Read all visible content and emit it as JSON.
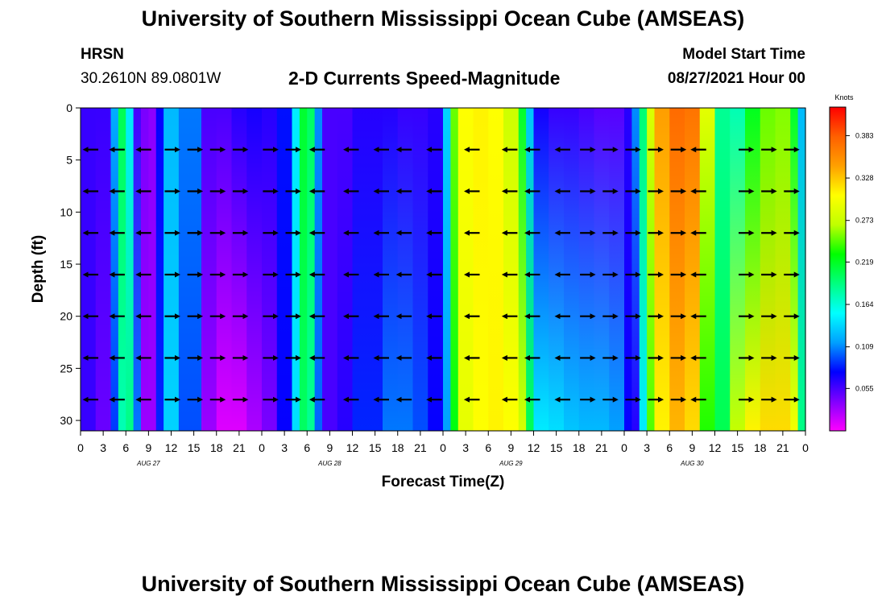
{
  "header": {
    "title_top": "University of Southern Mississippi Ocean Cube (AMSEAS)",
    "title_bottom": "University of Southern Mississippi Ocean Cube (AMSEAS)",
    "station": "HRSN",
    "coords": "30.2610N  89.0801W",
    "subtitle": "2-D Currents Speed-Magnitude",
    "model_start_label": "Model Start Time",
    "model_start_value": "08/27/2021 Hour 00"
  },
  "chart_data": {
    "type": "heatmap",
    "title": "2-D Currents Speed-Magnitude",
    "xlabel": "Forecast Time(Z)",
    "ylabel": "Depth (ft)",
    "xlim": [
      0,
      96
    ],
    "ylim": [
      31,
      0
    ],
    "x_tick_labels": [
      "0",
      "3",
      "6",
      "9",
      "12",
      "15",
      "18",
      "21",
      "0",
      "3",
      "6",
      "9",
      "12",
      "15",
      "18",
      "21",
      "0",
      "3",
      "6",
      "9",
      "12",
      "15",
      "18",
      "21",
      "0",
      "3",
      "6",
      "9",
      "12",
      "15",
      "18",
      "21",
      "0"
    ],
    "y_ticks": [
      0,
      5,
      10,
      15,
      20,
      25,
      30
    ],
    "date_labels": [
      "AUG 27",
      "AUG 28",
      "AUG 29",
      "AUG 30"
    ],
    "colorbar": {
      "unit": "Knots",
      "ticks": [
        "0.383",
        "0.328",
        "0.273",
        "0.219",
        "0.164",
        "0.109",
        "0.055"
      ],
      "range": [
        0,
        0.42
      ],
      "colors": [
        "#ff00ff",
        "#8000ff",
        "#0000ff",
        "#00a0ff",
        "#00ffff",
        "#00ff80",
        "#00ff00",
        "#c0ff00",
        "#ffff00",
        "#ffa000",
        "#ff6000",
        "#ff0000"
      ]
    },
    "hours": [
      0,
      2,
      4,
      5,
      6,
      7,
      8,
      9,
      10,
      11,
      13,
      16,
      18,
      20,
      22,
      24,
      26,
      28,
      29,
      30,
      31,
      32,
      34,
      36,
      40,
      42,
      44,
      46,
      48,
      49,
      50,
      52,
      54,
      56,
      58,
      59,
      60,
      62,
      64,
      66,
      68,
      70,
      72,
      73,
      74,
      75,
      76,
      78,
      80,
      82,
      84,
      86,
      88,
      90,
      92,
      94,
      95,
      96
    ],
    "speed_surface": [
      0.07,
      0.05,
      0.07,
      0.17,
      0.24,
      0.05,
      0.06,
      0.02,
      0.05,
      0.1,
      0.15,
      0.06,
      0.05,
      0.06,
      0.07,
      0.07,
      0.06,
      0.1,
      0.19,
      0.24,
      0.16,
      0.06,
      0.05,
      0.06,
      0.07,
      0.06,
      0.06,
      0.06,
      0.07,
      0.2,
      0.3,
      0.31,
      0.31,
      0.3,
      0.25,
      0.18,
      0.08,
      0.06,
      0.06,
      0.06,
      0.05,
      0.05,
      0.05,
      0.08,
      0.14,
      0.25,
      0.32,
      0.37,
      0.38,
      0.36,
      0.22,
      0.15,
      0.2,
      0.24,
      0.26,
      0.25,
      0.18,
      0.07
    ],
    "speed_bottom": [
      0.08,
      0.04,
      0.05,
      0.13,
      0.22,
      0.16,
      0.05,
      0.01,
      0.05,
      0.12,
      0.15,
      0.04,
      0.02,
      0.0,
      0.02,
      0.03,
      0.05,
      0.1,
      0.18,
      0.22,
      0.15,
      0.05,
      0.06,
      0.07,
      0.1,
      0.11,
      0.1,
      0.09,
      0.06,
      0.17,
      0.28,
      0.3,
      0.31,
      0.31,
      0.3,
      0.26,
      0.15,
      0.14,
      0.14,
      0.12,
      0.13,
      0.12,
      0.11,
      0.04,
      0.09,
      0.2,
      0.29,
      0.33,
      0.34,
      0.3,
      0.17,
      0.24,
      0.3,
      0.32,
      0.32,
      0.32,
      0.28,
      0.1
    ],
    "arrows": {
      "depths": [
        4,
        8,
        12,
        16,
        20,
        24,
        28
      ],
      "hours": [
        1.5,
        5,
        8.5,
        12,
        15,
        18,
        21,
        25,
        28,
        31.5,
        36,
        40,
        43,
        47,
        52,
        57,
        60,
        64,
        67,
        70,
        73,
        76,
        79,
        82,
        88,
        91,
        94
      ],
      "direction_deg": [
        180,
        180,
        180,
        0,
        0,
        0,
        0,
        0,
        0,
        180,
        180,
        180,
        180,
        180,
        180,
        180,
        180,
        180,
        0,
        0,
        0,
        0,
        0,
        180,
        0,
        0,
        0
      ]
    }
  }
}
